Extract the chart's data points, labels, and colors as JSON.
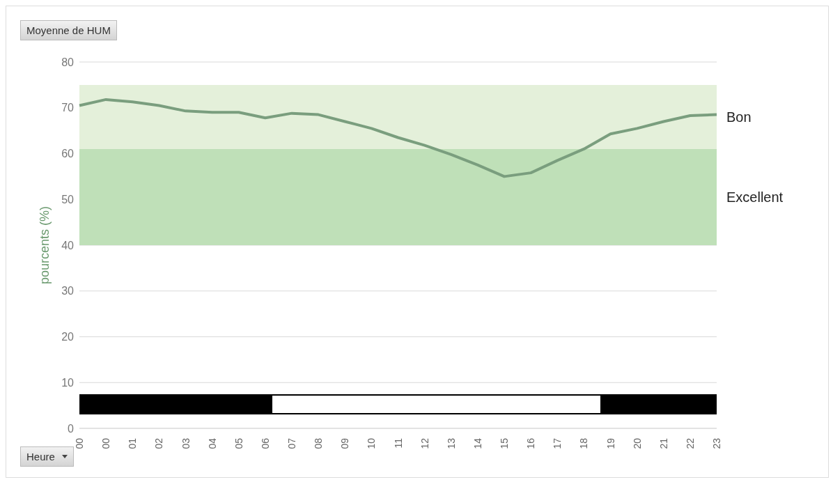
{
  "chart_data": {
    "type": "line",
    "title": "Moyenne de HUM",
    "xlabel": "Heure",
    "ylabel": "pourcents (%)",
    "categories": [
      "00",
      "00",
      "01",
      "02",
      "03",
      "04",
      "05",
      "06",
      "07",
      "08",
      "09",
      "10",
      "11",
      "12",
      "13",
      "14",
      "15",
      "16",
      "17",
      "18",
      "19",
      "20",
      "21",
      "22",
      "23"
    ],
    "series": [
      {
        "color": "#7a9e7e",
        "values": [
          70.5,
          71.8,
          71.3,
          70.5,
          69.3,
          69.0,
          69.0,
          67.8,
          68.8,
          68.5,
          67.0,
          65.5,
          63.5,
          61.8,
          59.8,
          57.5,
          55.0,
          55.8,
          58.5,
          61.0,
          64.3,
          65.5,
          67.0,
          68.3,
          68.5
        ]
      }
    ],
    "ylim": [
      0,
      80
    ],
    "yticks": [
      0,
      10,
      20,
      30,
      40,
      50,
      60,
      70,
      80
    ],
    "bands": [
      {
        "axis": "y",
        "from": 61,
        "to": 75,
        "label": "Bon",
        "color": "#e4f0da"
      },
      {
        "axis": "y",
        "from": 40,
        "to": 61,
        "label": "Excellent",
        "color": "#bfe0b8"
      }
    ],
    "grid": "y",
    "marker": "none",
    "line_style": "solid"
  }
}
